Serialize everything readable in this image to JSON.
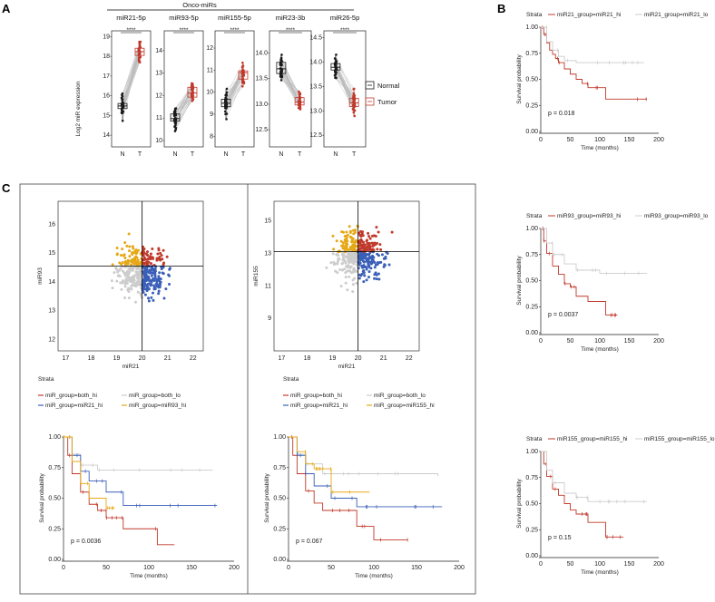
{
  "panels": {
    "a": "A",
    "b": "B",
    "c": "C"
  },
  "panelA": {
    "group_title": "Onco-miRs",
    "ylabel": "Log2 miR expression",
    "xcats": [
      "N",
      "T"
    ],
    "stars": "****",
    "legend": {
      "normal": "Normal",
      "tumor": "Tumor"
    },
    "colors": {
      "normal": "#1a1a1a",
      "tumor": "#c0392b"
    },
    "subplots": [
      {
        "name": "miR21-5p",
        "yticks": [
          "14",
          "15",
          "16",
          "17",
          "18",
          "19"
        ]
      },
      {
        "name": "miR93-5p",
        "yticks": [
          "10",
          "11",
          "12",
          "13",
          "14"
        ]
      },
      {
        "name": "miR155-5p",
        "yticks": [
          "8",
          "9",
          "10",
          "11",
          "12"
        ]
      },
      {
        "name": "miR23-3b",
        "yticks": [
          "12.5",
          "13.0",
          "13.5",
          "14.0"
        ]
      },
      {
        "name": "miR26-5p",
        "yticks": [
          "12.5",
          "13.0",
          "13.5",
          "14.0",
          "14.5"
        ]
      }
    ]
  },
  "panelB": {
    "ylabel": "Survival probability",
    "xlabel": "Time (months)",
    "strata_label": "Strata",
    "yticks": [
      "0.00",
      "0.25",
      "0.50",
      "0.75",
      "1.00"
    ],
    "xticks": [
      "0",
      "50",
      "100",
      "150",
      "200"
    ],
    "plots": [
      {
        "legend_hi": "miR21_group=miR21_hi",
        "legend_lo": "miR21_group=miR21_lo",
        "pval": "p = 0.018"
      },
      {
        "legend_hi": "miR93_group=miR93_hi",
        "legend_lo": "miR93_group=miR93_lo",
        "pval": "p = 0.0037"
      },
      {
        "legend_hi": "miR155_group=miR155_hi",
        "legend_lo": "miR155_group=miR155_lo",
        "pval": "p = 0.15"
      }
    ]
  },
  "panelC": {
    "scatter1": {
      "xlabel": "miR21",
      "ylabel": "miR93",
      "xticks": [
        "17",
        "18",
        "19",
        "20",
        "21",
        "22"
      ],
      "yticks": [
        "12",
        "13",
        "14",
        "15",
        "16"
      ]
    },
    "scatter2": {
      "xlabel": "miR21",
      "ylabel": "miR155",
      "xticks": [
        "17",
        "18",
        "19",
        "20",
        "21",
        "22"
      ],
      "yticks": [
        "9",
        "11",
        "13",
        "15"
      ]
    },
    "strata_label": "Strata",
    "legend1": [
      "miR_group=both_hi",
      "miR_group=both_lo",
      "miR_group=miR21_hi",
      "miR_group=miR93_hi"
    ],
    "legend2": [
      "miR_group=both_hi",
      "miR_group=both_lo",
      "miR_group=miR21_hi",
      "miR_group=miR155_hi"
    ],
    "ylabel": "Survival probability",
    "xlabel": "Time (months)",
    "yticks": [
      "0.00",
      "0.25",
      "0.50",
      "0.75",
      "1.00"
    ],
    "xticks": [
      "0",
      "50",
      "100",
      "150",
      "200"
    ],
    "pval1": "p = 0.0036",
    "pval2": "p = 0.067",
    "colors": {
      "both_hi": "#c0392b",
      "both_lo": "#cccccc",
      "miR21_hi": "#3a5fb8",
      "mir_hi": "#e6a817"
    }
  },
  "chart_data": [
    {
      "type": "box",
      "title": "miR21-5p",
      "categories": [
        "N",
        "T"
      ],
      "ylim": [
        13.5,
        19.2
      ],
      "median": [
        15.6,
        18.2
      ]
    },
    {
      "type": "box",
      "title": "miR93-5p",
      "categories": [
        "N",
        "T"
      ],
      "ylim": [
        9.8,
        14.8
      ],
      "median": [
        11.0,
        12.2
      ]
    },
    {
      "type": "box",
      "title": "miR155-5p",
      "categories": [
        "N",
        "T"
      ],
      "ylim": [
        7.6,
        12.7
      ],
      "median": [
        9.5,
        10.8
      ]
    },
    {
      "type": "box",
      "title": "miR23-3b",
      "categories": [
        "N",
        "T"
      ],
      "ylim": [
        12.2,
        14.4
      ],
      "median": [
        13.7,
        13.1
      ]
    },
    {
      "type": "box",
      "title": "miR26-5p",
      "categories": [
        "N",
        "T"
      ],
      "ylim": [
        12.3,
        14.6
      ],
      "median": [
        13.9,
        13.2
      ]
    },
    {
      "type": "line",
      "title": "KM miR21",
      "xlim": [
        0,
        200
      ],
      "ylim": [
        0,
        1
      ],
      "series": [
        {
          "name": "miR21_hi",
          "x": [
            0,
            5,
            10,
            15,
            20,
            25,
            30,
            40,
            50,
            60,
            70,
            80,
            110,
            180
          ],
          "y": [
            1.0,
            0.93,
            0.85,
            0.78,
            0.74,
            0.7,
            0.66,
            0.6,
            0.55,
            0.5,
            0.46,
            0.42,
            0.31,
            0.31
          ]
        },
        {
          "name": "miR21_lo",
          "x": [
            0,
            10,
            20,
            30,
            40,
            60,
            175
          ],
          "y": [
            1.0,
            0.86,
            0.78,
            0.72,
            0.68,
            0.66,
            0.66
          ]
        }
      ]
    },
    {
      "type": "line",
      "title": "KM miR93",
      "xlim": [
        0,
        200
      ],
      "ylim": [
        0,
        1
      ],
      "series": [
        {
          "name": "miR93_hi",
          "x": [
            0,
            5,
            10,
            20,
            30,
            40,
            50,
            60,
            80,
            110,
            130
          ],
          "y": [
            1.0,
            0.88,
            0.76,
            0.64,
            0.56,
            0.47,
            0.44,
            0.35,
            0.3,
            0.17,
            0.17
          ]
        },
        {
          "name": "miR93_lo",
          "x": [
            0,
            10,
            20,
            40,
            60,
            100,
            180
          ],
          "y": [
            1.0,
            0.86,
            0.75,
            0.66,
            0.6,
            0.57,
            0.57
          ]
        }
      ]
    },
    {
      "type": "line",
      "title": "KM miR155",
      "xlim": [
        0,
        200
      ],
      "ylim": [
        0,
        1
      ],
      "series": [
        {
          "name": "miR155_hi",
          "x": [
            0,
            5,
            10,
            20,
            30,
            40,
            50,
            60,
            80,
            110,
            140
          ],
          "y": [
            1.0,
            0.88,
            0.76,
            0.64,
            0.58,
            0.5,
            0.44,
            0.4,
            0.32,
            0.18,
            0.18
          ]
        },
        {
          "name": "miR155_lo",
          "x": [
            0,
            10,
            20,
            40,
            60,
            80,
            180
          ],
          "y": [
            1.0,
            0.82,
            0.7,
            0.6,
            0.56,
            0.52,
            0.52
          ]
        }
      ]
    },
    {
      "type": "line",
      "title": "KM miR21/miR93",
      "xlim": [
        0,
        200
      ],
      "ylim": [
        0,
        1
      ],
      "series": [
        {
          "name": "both_hi",
          "x": [
            0,
            5,
            10,
            20,
            30,
            40,
            50,
            70,
            110,
            130
          ],
          "y": [
            1.0,
            0.85,
            0.7,
            0.55,
            0.45,
            0.4,
            0.34,
            0.25,
            0.12,
            0.12
          ]
        },
        {
          "name": "both_lo",
          "x": [
            0,
            10,
            20,
            40,
            175
          ],
          "y": [
            1.0,
            0.86,
            0.77,
            0.73,
            0.73
          ]
        },
        {
          "name": "miR21_hi",
          "x": [
            0,
            10,
            20,
            30,
            50,
            70,
            180
          ],
          "y": [
            1.0,
            0.85,
            0.72,
            0.64,
            0.55,
            0.44,
            0.44
          ]
        },
        {
          "name": "miR93_hi",
          "x": [
            0,
            10,
            20,
            30,
            50,
            60
          ],
          "y": [
            1.0,
            0.8,
            0.62,
            0.5,
            0.42,
            0.42
          ]
        }
      ]
    },
    {
      "type": "line",
      "title": "KM miR21/miR155",
      "xlim": [
        0,
        200
      ],
      "ylim": [
        0,
        1
      ],
      "series": [
        {
          "name": "both_hi",
          "x": [
            0,
            5,
            10,
            20,
            30,
            40,
            60,
            80,
            100,
            140
          ],
          "y": [
            1.0,
            0.85,
            0.7,
            0.56,
            0.46,
            0.4,
            0.4,
            0.27,
            0.16,
            0.16
          ]
        },
        {
          "name": "both_lo",
          "x": [
            0,
            10,
            20,
            40,
            175
          ],
          "y": [
            1.0,
            0.86,
            0.78,
            0.7,
            0.68
          ]
        },
        {
          "name": "miR21_hi",
          "x": [
            0,
            10,
            20,
            30,
            50,
            80,
            180
          ],
          "y": [
            1.0,
            0.85,
            0.7,
            0.6,
            0.5,
            0.43,
            0.43
          ]
        },
        {
          "name": "miR155_hi",
          "x": [
            0,
            10,
            20,
            30,
            45,
            50,
            95
          ],
          "y": [
            1.0,
            0.88,
            0.78,
            0.74,
            0.74,
            0.55,
            0.55
          ]
        }
      ]
    }
  ]
}
